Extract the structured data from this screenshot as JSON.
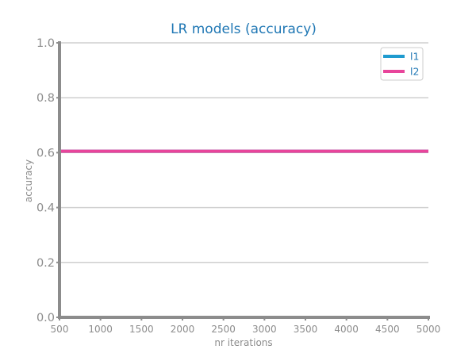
{
  "chart_data": {
    "type": "line",
    "title": "LR models (accuracy)",
    "xlabel": "nr iterations",
    "ylabel": "accuracy",
    "x": [
      500,
      1000,
      1500,
      2000,
      2500,
      3000,
      3500,
      4000,
      4500,
      5000
    ],
    "xticks": [
      "500",
      "1000",
      "1500",
      "2000",
      "2500",
      "3000",
      "3500",
      "4000",
      "4500",
      "5000"
    ],
    "yticks": [
      "0.0",
      "0.2",
      "0.4",
      "0.6",
      "0.8",
      "1.0"
    ],
    "xlim": [
      500,
      5000
    ],
    "ylim": [
      0.0,
      1.0
    ],
    "grid": "horizontal",
    "legend_position": "top-right",
    "series": [
      {
        "name": "l1",
        "color": "#1f9bcf",
        "values": [
          0.605,
          0.605,
          0.605,
          0.605,
          0.605,
          0.605,
          0.605,
          0.605,
          0.605,
          0.605
        ]
      },
      {
        "name": "l2",
        "color": "#e8459b",
        "values": [
          0.605,
          0.605,
          0.605,
          0.605,
          0.605,
          0.605,
          0.605,
          0.605,
          0.605,
          0.605
        ]
      }
    ]
  }
}
